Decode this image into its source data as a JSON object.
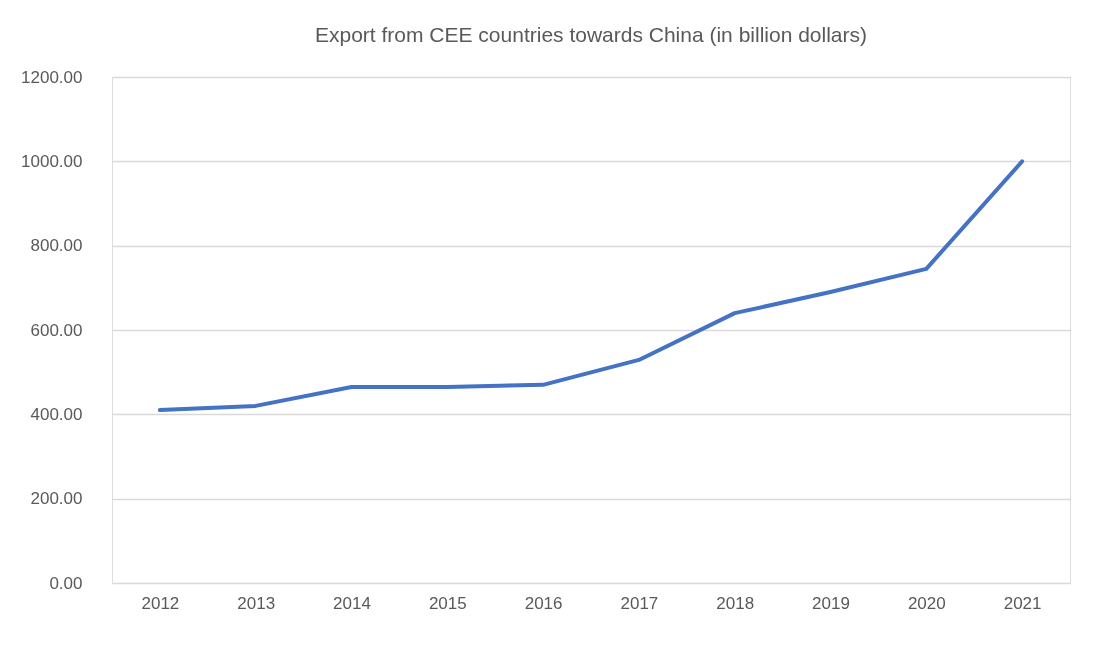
{
  "chart_data": {
    "type": "line",
    "title": "Export from CEE countries towards China (in billion dollars)",
    "categories": [
      "2012",
      "2013",
      "2014",
      "2015",
      "2016",
      "2017",
      "2018",
      "2019",
      "2020",
      "2021"
    ],
    "series": [
      {
        "color": "#4472c4",
        "values": [
          410,
          420,
          465,
          465,
          470,
          529,
          640,
          690,
          745,
          1000
        ]
      }
    ],
    "ylim": [
      0,
      1200
    ],
    "yticks": [
      {
        "value": 0,
        "label": "0.00"
      },
      {
        "value": 200,
        "label": "200.00"
      },
      {
        "value": 400,
        "label": "400.00"
      },
      {
        "value": 600,
        "label": "600.00"
      },
      {
        "value": 800,
        "label": "800.00"
      },
      {
        "value": 1000,
        "label": "1000.00"
      },
      {
        "value": 1200,
        "label": "1200.00"
      }
    ],
    "grid": "y",
    "marker": "none",
    "line_style": "solid"
  }
}
